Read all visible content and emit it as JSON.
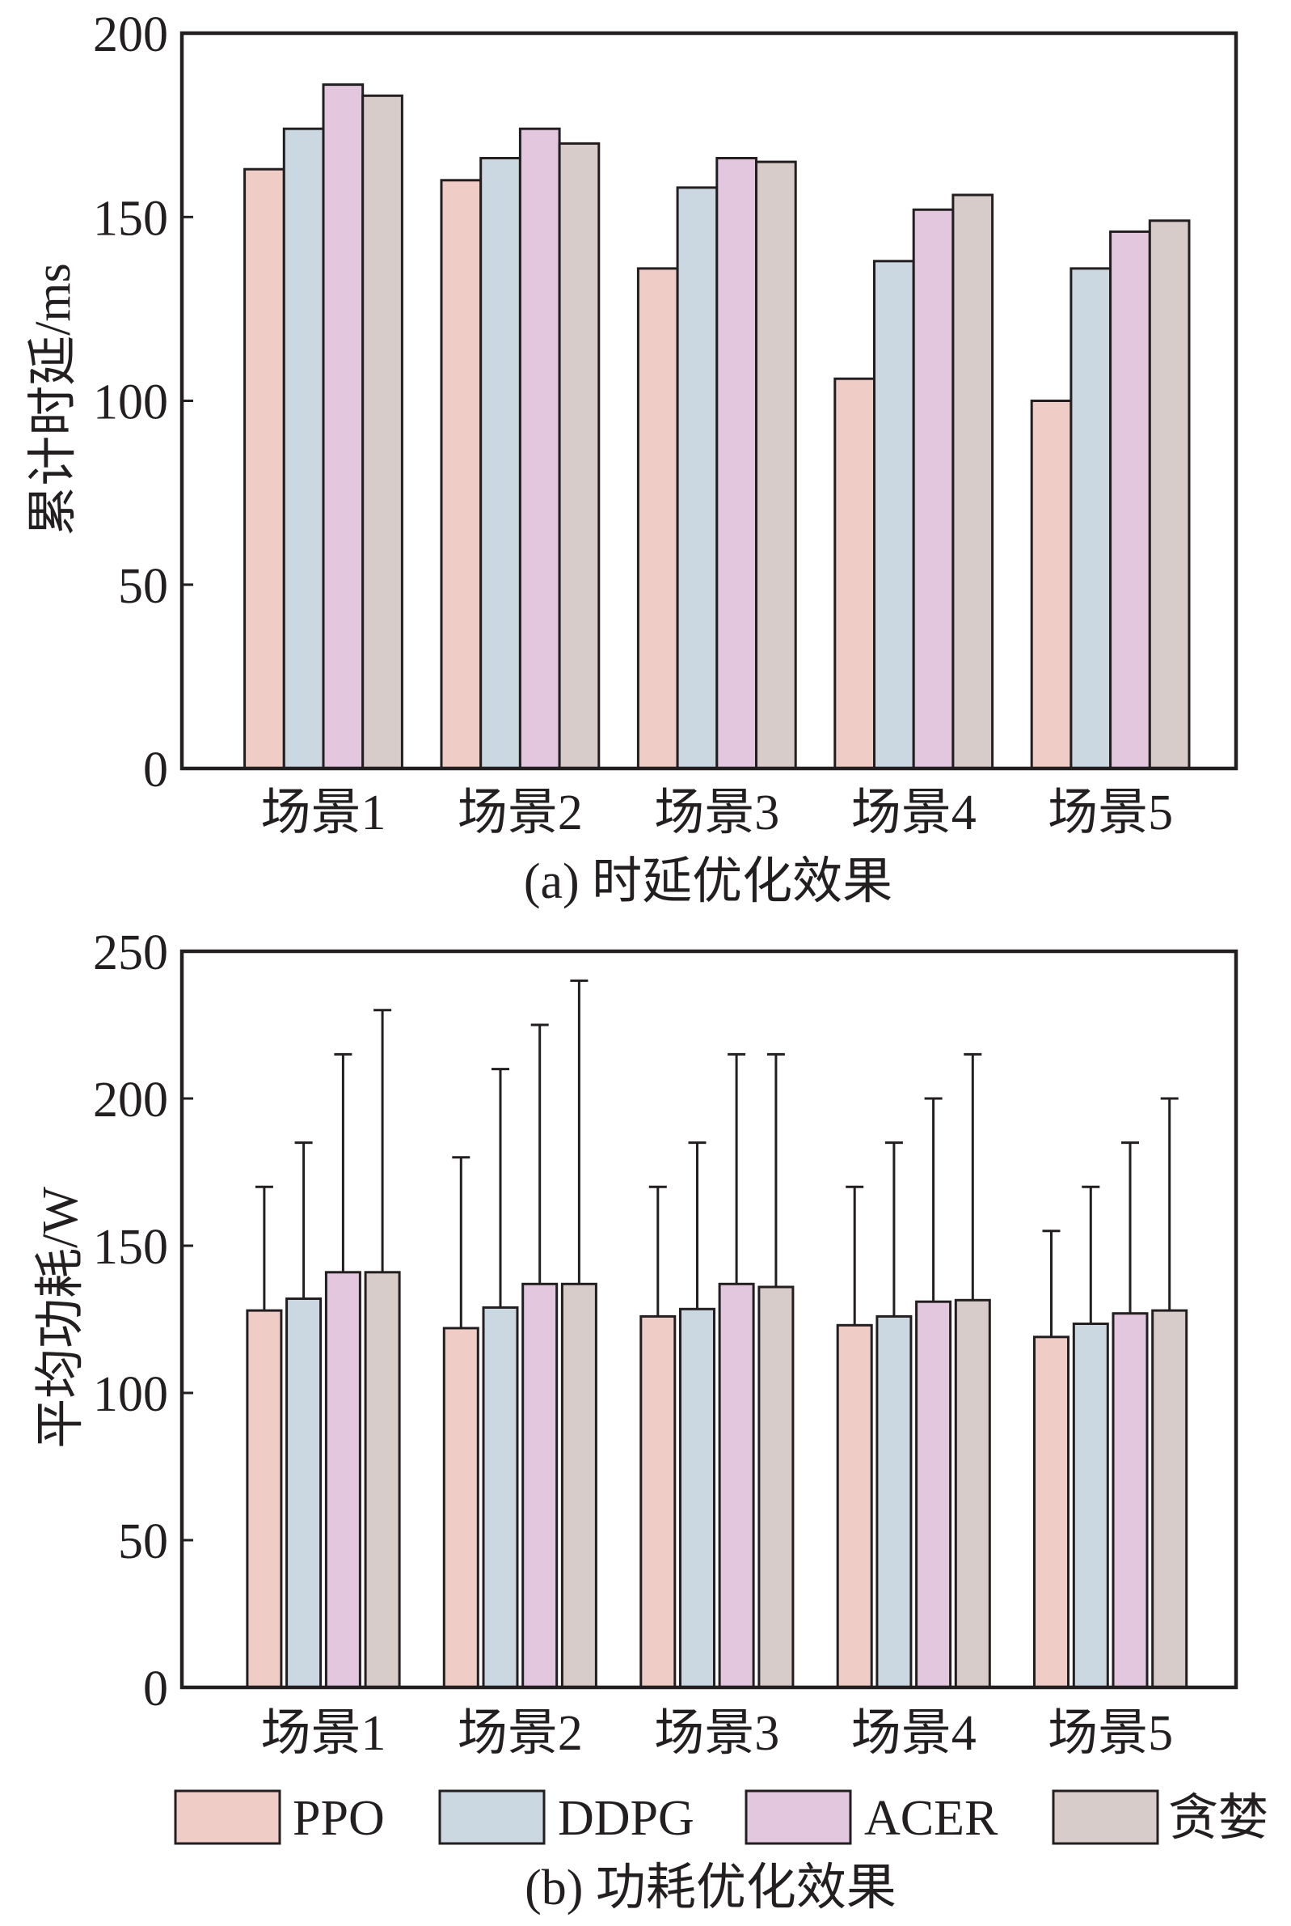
{
  "figure": {
    "text_color": "#231f20",
    "line_color": "#231f20",
    "background": "#ffffff"
  },
  "chart_data": [
    {
      "type": "bar",
      "caption": "(a) 时延优化效果",
      "title": "",
      "xlabel": "",
      "ylabel": "累计时延/ms",
      "categories": [
        "场景1",
        "场景2",
        "场景3",
        "场景4",
        "场景5"
      ],
      "ylim": [
        0,
        200
      ],
      "yticks": [
        0,
        50,
        100,
        150,
        200
      ],
      "grid": false,
      "series": [
        {
          "name": "PPO",
          "color": "#EFCCC6",
          "values": [
            163,
            160,
            136,
            106,
            100
          ]
        },
        {
          "name": "DDPG",
          "color": "#CBD7E1",
          "values": [
            174,
            166,
            158,
            138,
            136
          ]
        },
        {
          "name": "ACER",
          "color": "#E2C7DE",
          "values": [
            186,
            174,
            166,
            152,
            146
          ]
        },
        {
          "name": "贪婪",
          "color": "#D8CCCA",
          "values": [
            183,
            170,
            165,
            156,
            149
          ]
        }
      ]
    },
    {
      "type": "bar",
      "caption": "(b) 功耗优化效果",
      "title": "",
      "xlabel": "",
      "ylabel": "平均功耗/W",
      "categories": [
        "场景1",
        "场景2",
        "场景3",
        "场景4",
        "场景5"
      ],
      "ylim": [
        0,
        250
      ],
      "yticks": [
        0,
        50,
        100,
        150,
        200,
        250
      ],
      "grid": false,
      "legend": "bottom",
      "series": [
        {
          "name": "PPO",
          "color": "#EFCCC6",
          "values": [
            128,
            122,
            126,
            123,
            119
          ],
          "err": [
            42,
            58,
            44,
            47,
            36
          ]
        },
        {
          "name": "DDPG",
          "color": "#CBD7E1",
          "values": [
            132,
            129,
            128.5,
            126,
            123.5
          ],
          "err": [
            53,
            81,
            56.5,
            59,
            46.5
          ]
        },
        {
          "name": "ACER",
          "color": "#E2C7DE",
          "values": [
            141,
            137,
            137,
            131,
            127
          ],
          "err": [
            74,
            88,
            78,
            69,
            58
          ]
        },
        {
          "name": "贪婪",
          "color": "#D8CCCA",
          "values": [
            141,
            137,
            136,
            131.5,
            128
          ],
          "err": [
            89,
            103,
            79,
            83.5,
            72
          ]
        }
      ]
    }
  ]
}
